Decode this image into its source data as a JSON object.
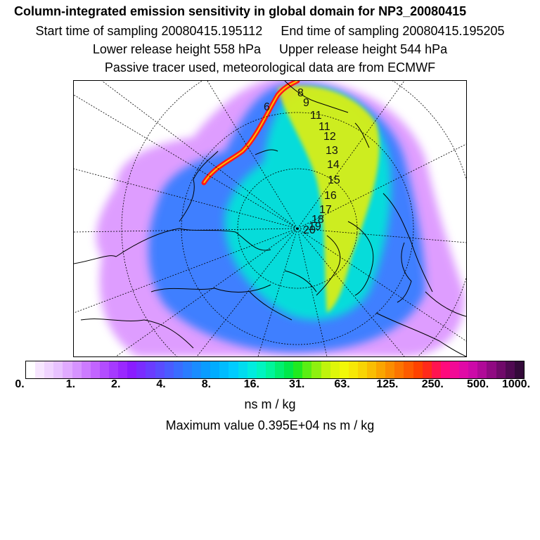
{
  "header": {
    "title": "Column-integrated emission sensitivity in global domain for NP3_20080415",
    "start_label": "Start time of sampling 20080415.195112",
    "end_label": "End time of sampling 20080415.195205",
    "lower_label": "Lower release height  558 hPa",
    "upper_label": "Upper release height  544 hPa",
    "info_label": "Passive tracer used, meteorological data are from ECMWF"
  },
  "map": {
    "projection": "north polar stereographic",
    "hour_labels": [
      "6",
      "8",
      "9",
      "11",
      "11",
      "12",
      "13",
      "14",
      "15",
      "16",
      "17",
      "18",
      "19",
      "20"
    ],
    "colors": {
      "background": "#ffffff",
      "coastline": "#000000",
      "graticule": "#000000",
      "plume_low": "#d98cff",
      "plume_mid": "#2e7bff",
      "plume_high": "#00e7d7",
      "plume_hot": "#f0f000",
      "track": "#ff1a1a"
    }
  },
  "colorbar": {
    "colors": [
      "#ffffff",
      "#f7e6ff",
      "#f0d4ff",
      "#e8c2ff",
      "#e0aaff",
      "#d693ff",
      "#cc7bff",
      "#c264ff",
      "#b34dff",
      "#a63aff",
      "#9a28ff",
      "#8a1cff",
      "#7a2cff",
      "#6a3cff",
      "#5a4cff",
      "#4a5cff",
      "#3a6cff",
      "#2a7cff",
      "#1a8cff",
      "#0a9cff",
      "#00acff",
      "#00bcff",
      "#00ccff",
      "#00dcef",
      "#00ecdf",
      "#00f4c0",
      "#00f59a",
      "#00ef70",
      "#00e94a",
      "#20ea20",
      "#5aee14",
      "#8ef010",
      "#bff30c",
      "#def70a",
      "#f2f808",
      "#f7e806",
      "#f8d404",
      "#f9bd02",
      "#faa500",
      "#fb8d00",
      "#fc7400",
      "#fd5b00",
      "#fe4200",
      "#ff2a1a",
      "#ff1450",
      "#ff0a7c",
      "#f20a96",
      "#e00aa6",
      "#cc0aa8",
      "#b00a98",
      "#900a82",
      "#700a6a",
      "#500a52",
      "#340a3a"
    ],
    "tick_labels": [
      "0.",
      "1.",
      "2.",
      "4.",
      "8.",
      "16.",
      "31.",
      "63.",
      "125.",
      "250.",
      "500.",
      "1000."
    ],
    "units": "ns m / kg",
    "max_label": "Maximum value  0.395E+04 ns m / kg"
  }
}
